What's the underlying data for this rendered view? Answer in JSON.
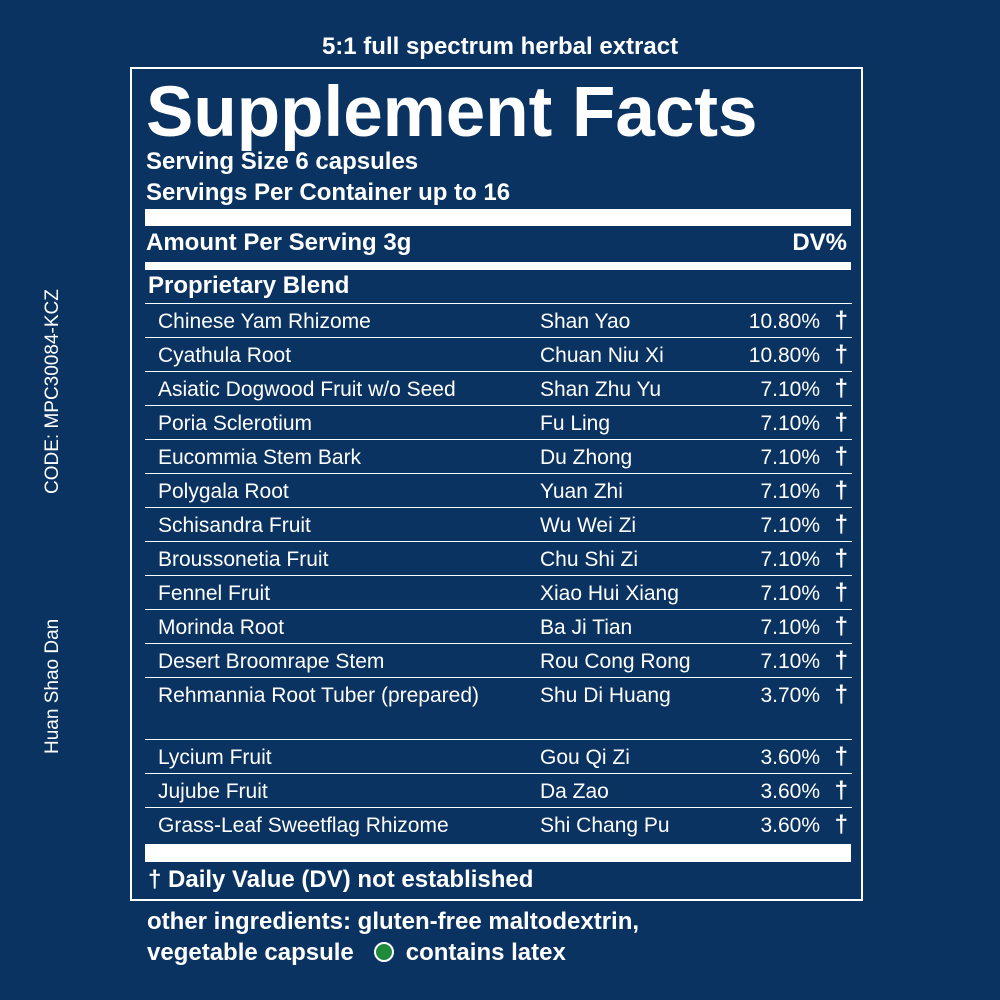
{
  "top_caption": "5:1 full spectrum herbal extract",
  "side_code": "CODE: MPC30084-KCZ",
  "side_name": "Huan Shao Dan",
  "panel": {
    "title": "Supplement Facts",
    "serving_size": "Serving Size 6 capsules",
    "servings_per_container": "Servings Per Container up to 16",
    "amount_header": "Amount Per Serving 3g",
    "dv_header": "DV%",
    "blend_title": "Proprietary Blend",
    "rows": [
      {
        "name": "Chinese Yam Rhizome",
        "pinyin": "Shan Yao",
        "pct": "10.80%",
        "dag": "†"
      },
      {
        "name": "Cyathula Root",
        "pinyin": "Chuan Niu Xi",
        "pct": "10.80%",
        "dag": "†"
      },
      {
        "name": "Asiatic Dogwood Fruit w/o Seed",
        "pinyin": "Shan Zhu Yu",
        "pct": "7.10%",
        "dag": "†"
      },
      {
        "name": "Poria Sclerotium",
        "pinyin": "Fu Ling",
        "pct": "7.10%",
        "dag": "†"
      },
      {
        "name": "Eucommia Stem Bark",
        "pinyin": "Du Zhong",
        "pct": "7.10%",
        "dag": "†"
      },
      {
        "name": "Polygala Root",
        "pinyin": "Yuan Zhi",
        "pct": "7.10%",
        "dag": "†"
      },
      {
        "name": "Schisandra Fruit",
        "pinyin": "Wu Wei Zi",
        "pct": "7.10%",
        "dag": "†"
      },
      {
        "name": "Broussonetia Fruit",
        "pinyin": "Chu Shi Zi",
        "pct": "7.10%",
        "dag": "†"
      },
      {
        "name": "Fennel Fruit",
        "pinyin": "Xiao Hui Xiang",
        "pct": "7.10%",
        "dag": "†"
      },
      {
        "name": "Morinda Root",
        "pinyin": "Ba Ji Tian",
        "pct": "7.10%",
        "dag": "†"
      },
      {
        "name": "Desert Broomrape Stem",
        "pinyin": "Rou Cong Rong",
        "pct": "7.10%",
        "dag": "†"
      },
      {
        "name": "Rehmannia Root Tuber (prepared)",
        "pinyin": "Shu Di Huang",
        "pct": "3.70%",
        "dag": "†"
      },
      {
        "name": "Lycium Fruit",
        "pinyin": "Gou Qi Zi",
        "pct": "3.60%",
        "dag": "†"
      },
      {
        "name": "Jujube Fruit",
        "pinyin": "Da Zao",
        "pct": "3.60%",
        "dag": "†"
      },
      {
        "name": "Grass-Leaf Sweetflag Rhizome",
        "pinyin": "Shi Chang Pu",
        "pct": "3.60%",
        "dag": "†"
      }
    ],
    "footnote": "† Daily Value (DV) not established"
  },
  "other": {
    "line1": "other ingredients: gluten-free maltodextrin,",
    "line2_a": "vegetable capsule",
    "line2_b": "contains latex",
    "latex_dot_color": "#1e8a3a",
    "latex_icon": "green-circle-icon"
  },
  "colors": {
    "background": "#0a3361",
    "foreground": "#ffffff"
  }
}
